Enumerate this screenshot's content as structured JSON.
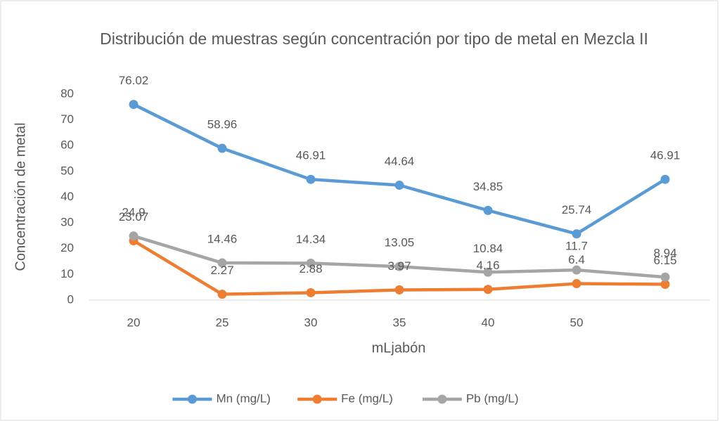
{
  "chart_data": {
    "type": "line",
    "title": "Distribución de muestras según concentración por tipo de metal en Mezcla II",
    "x_label": "mLjabón",
    "y_label": "Concentración de metal",
    "categories": [
      "20",
      "25",
      "30",
      "35",
      "40",
      "50",
      null
    ],
    "series": [
      {
        "name": "Mn (mg/L)",
        "color": "#5b9bd5",
        "values": [
          76.02,
          58.96,
          46.91,
          44.64,
          34.85,
          25.74,
          46.91
        ]
      },
      {
        "name": "Fe (mg/L)",
        "color": "#ed7d31",
        "values": [
          23.07,
          2.27,
          2.88,
          3.97,
          4.16,
          6.4,
          6.15
        ]
      },
      {
        "name": "Pb (mg/L)",
        "color": "#a5a5a5",
        "values": [
          24.9,
          14.46,
          14.34,
          13.05,
          10.84,
          11.7,
          8.94
        ]
      }
    ],
    "ylim": [
      0,
      80
    ],
    "yticks": [
      0,
      10,
      20,
      30,
      40,
      50,
      60,
      70,
      80
    ],
    "grid": false,
    "legend": "bottom"
  }
}
